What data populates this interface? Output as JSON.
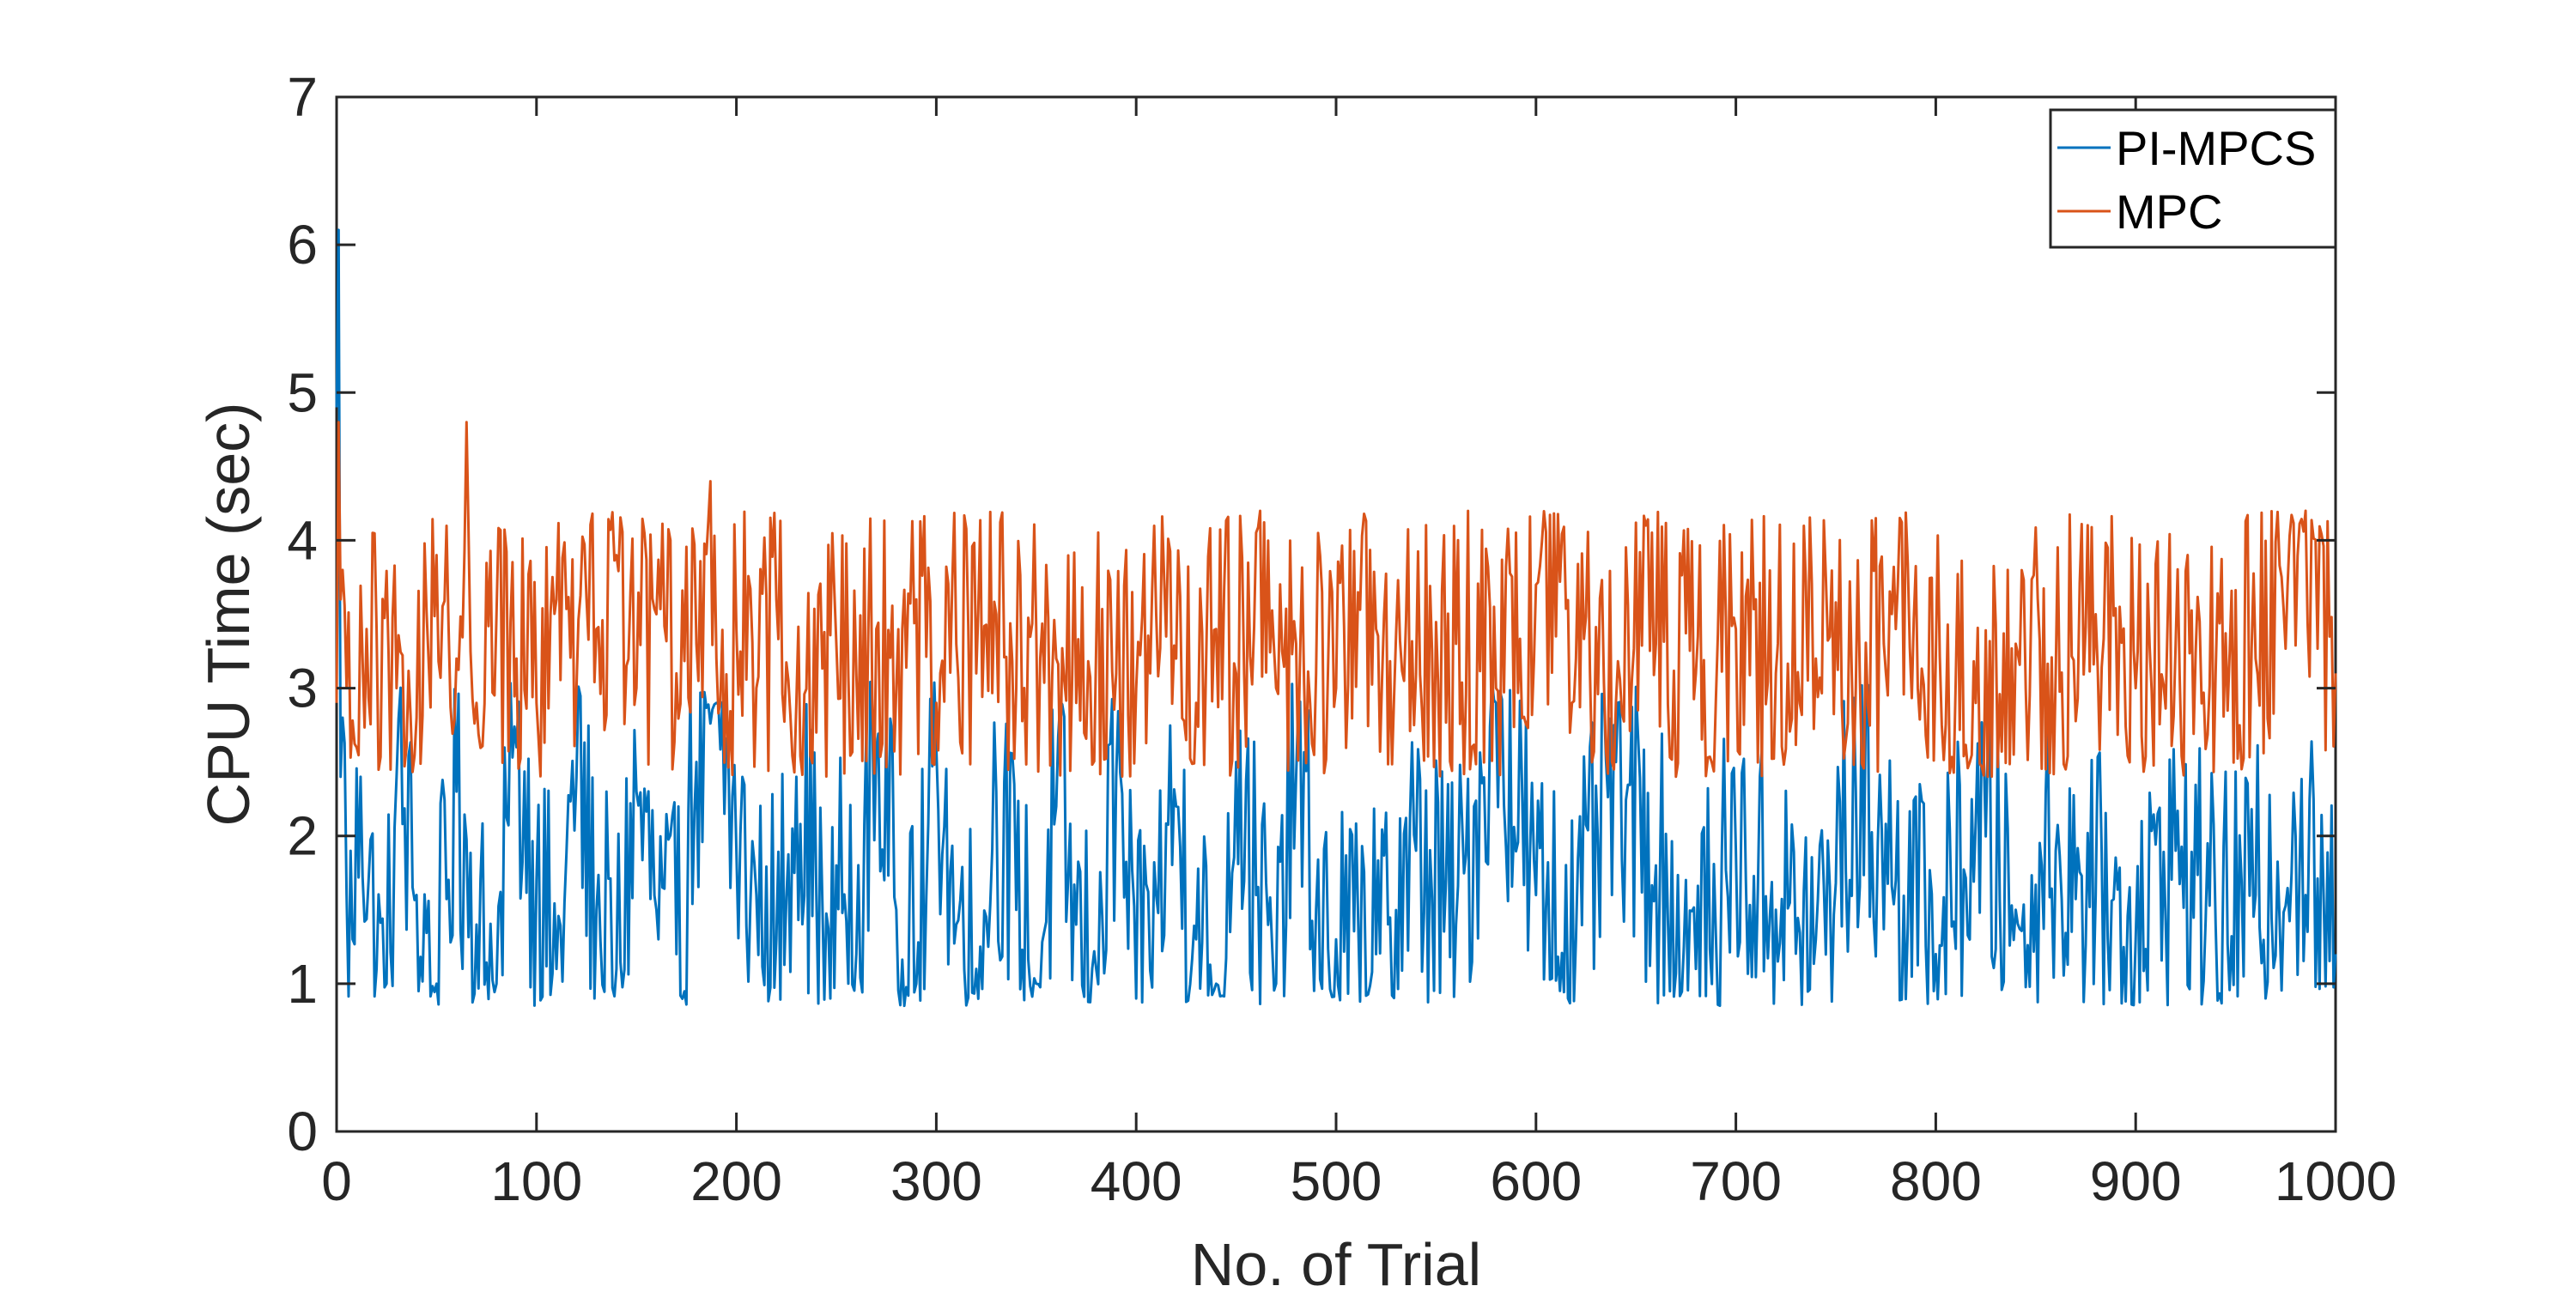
{
  "chart_data": {
    "type": "line",
    "xlabel": "No. of Trial",
    "ylabel": "CPU Time (sec)",
    "xlim": [
      0,
      1000
    ],
    "ylim": [
      0,
      7
    ],
    "xticks": [
      0,
      100,
      200,
      300,
      400,
      500,
      600,
      700,
      800,
      900,
      1000
    ],
    "yticks": [
      0,
      1,
      2,
      3,
      4,
      5,
      6,
      7
    ],
    "grid": false,
    "legend_position": "top-right",
    "series": [
      {
        "name": "PI-MPCS",
        "color": "#0072BD",
        "x_step": 1,
        "noise_amplitude": 1.0,
        "x": [
          0,
          1,
          2,
          3,
          5,
          8,
          12,
          20,
          25,
          30,
          40,
          50,
          60,
          70,
          80,
          90,
          100,
          110,
          120,
          130,
          140,
          150,
          160,
          170,
          180,
          190,
          200,
          210,
          220,
          230,
          240,
          247,
          250,
          260,
          270,
          280,
          290,
          300,
          310,
          320,
          330,
          340,
          350,
          360,
          370,
          380,
          390,
          400,
          410,
          420,
          430,
          440,
          450,
          460,
          470,
          480,
          490,
          500,
          520,
          540,
          560,
          580,
          600,
          620,
          640,
          660,
          680,
          700,
          720,
          740,
          760,
          780,
          800,
          820,
          840,
          860,
          880,
          900,
          920,
          940,
          960,
          980,
          1000
        ],
        "y": [
          4.9,
          6.1,
          2.4,
          2.8,
          1.6,
          1.3,
          2.4,
          1.1,
          1.0,
          2.4,
          1.6,
          1.0,
          2.3,
          1.4,
          1.0,
          2.6,
          1.7,
          1.1,
          2.4,
          1.5,
          1.1,
          2.3,
          1.5,
          1.2,
          2.5,
          2.9,
          1.9,
          1.6,
          1.3,
          2.4,
          1.6,
          0.9,
          1.8,
          1.2,
          2.6,
          1.5,
          1.0,
          2.6,
          1.4,
          1.1,
          2.3,
          1.5,
          1.0,
          2.2,
          1.4,
          1.1,
          2.4,
          0.9,
          1.6,
          2.2,
          1.3,
          1.0,
          2.5,
          1.6,
          1.0,
          2.4,
          1.5,
          1.3,
          1.2,
          1.9,
          1.4,
          2.9,
          1.6,
          1.3,
          2.5,
          1.8,
          1.1,
          1.9,
          1.5,
          1.3,
          2.3,
          1.7,
          1.2,
          2.1,
          1.5,
          1.9,
          1.6,
          1.3,
          1.9,
          1.4,
          1.6,
          2.0,
          1.2
        ]
      },
      {
        "name": "MPC",
        "color": "#D95319",
        "x_step": 1,
        "noise_amplitude": 1.0,
        "x": [
          0,
          1,
          2,
          3,
          5,
          10,
          20,
          30,
          40,
          50,
          60,
          65,
          70,
          80,
          90,
          100,
          110,
          120,
          130,
          140,
          150,
          160,
          170,
          180,
          187,
          190,
          200,
          210,
          220,
          230,
          240,
          250,
          260,
          270,
          280,
          290,
          300,
          310,
          320,
          330,
          340,
          350,
          360,
          370,
          380,
          390,
          400,
          410,
          420,
          430,
          440,
          450,
          462,
          470,
          480,
          490,
          500,
          520,
          540,
          560,
          580,
          600,
          620,
          640,
          655,
          660,
          680,
          700,
          720,
          740,
          760,
          780,
          800,
          820,
          840,
          860,
          880,
          900,
          920,
          940,
          960,
          985,
          1000
        ],
        "y": [
          2.9,
          4.8,
          3.6,
          3.8,
          3.0,
          2.6,
          3.4,
          3.0,
          2.8,
          3.9,
          3.2,
          4.8,
          2.9,
          3.5,
          3.2,
          2.9,
          3.6,
          3.0,
          3.4,
          3.9,
          3.0,
          3.5,
          3.1,
          3.3,
          4.4,
          3.2,
          3.4,
          3.0,
          3.6,
          2.9,
          2.7,
          3.3,
          3.1,
          3.4,
          3.0,
          3.6,
          2.9,
          3.3,
          3.1,
          3.5,
          3.0,
          3.4,
          3.2,
          2.9,
          3.3,
          3.1,
          3.0,
          3.5,
          3.2,
          2.9,
          3.4,
          3.1,
          4.2,
          3.0,
          3.3,
          3.1,
          3.0,
          3.4,
          3.1,
          3.3,
          3.0,
          3.7,
          3.2,
          2.9,
          4.1,
          3.3,
          3.1,
          3.4,
          3.1,
          3.2,
          3.0,
          3.4,
          3.2,
          2.9,
          3.3,
          3.1,
          3.5,
          3.0,
          3.3,
          3.1,
          3.2,
          4.2,
          3.1
        ]
      }
    ]
  }
}
